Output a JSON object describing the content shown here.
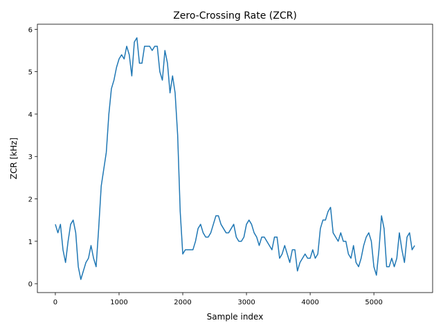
{
  "chart_data": {
    "type": "line",
    "title": "Zero-Crossing Rate (ZCR)",
    "xlabel": "Sample index",
    "ylabel": "ZCR [kHz]",
    "color": "#1f77b4",
    "x": [
      0,
      40,
      80,
      120,
      160,
      200,
      240,
      280,
      320,
      360,
      400,
      440,
      480,
      520,
      560,
      600,
      640,
      680,
      720,
      760,
      800,
      840,
      880,
      920,
      960,
      1000,
      1040,
      1080,
      1120,
      1160,
      1200,
      1240,
      1280,
      1320,
      1360,
      1400,
      1440,
      1480,
      1520,
      1560,
      1600,
      1640,
      1680,
      1720,
      1760,
      1800,
      1840,
      1880,
      1920,
      1960,
      2000,
      2040,
      2080,
      2120,
      2160,
      2200,
      2240,
      2280,
      2320,
      2360,
      2400,
      2440,
      2480,
      2520,
      2560,
      2600,
      2640,
      2680,
      2720,
      2760,
      2800,
      2840,
      2880,
      2920,
      2960,
      3000,
      3040,
      3080,
      3120,
      3160,
      3200,
      3240,
      3280,
      3320,
      3360,
      3400,
      3440,
      3480,
      3520,
      3560,
      3600,
      3640,
      3680,
      3720,
      3760,
      3800,
      3840,
      3880,
      3920,
      3960,
      4000,
      4040,
      4080,
      4120,
      4160,
      4200,
      4240,
      4280,
      4320,
      4360,
      4400,
      4440,
      4480,
      4520,
      4560,
      4600,
      4640,
      4680,
      4720,
      4760,
      4800,
      4840,
      4880,
      4920,
      4960,
      5000,
      5040,
      5080,
      5120,
      5160,
      5200,
      5240,
      5280,
      5320,
      5360,
      5400,
      5440,
      5480,
      5520,
      5560,
      5600,
      5640
    ],
    "values": [
      1.4,
      1.2,
      1.4,
      0.8,
      0.5,
      1.0,
      1.4,
      1.5,
      1.2,
      0.4,
      0.1,
      0.3,
      0.5,
      0.6,
      0.9,
      0.6,
      0.4,
      1.3,
      2.3,
      2.7,
      3.1,
      4.0,
      4.6,
      4.8,
      5.1,
      5.3,
      5.4,
      5.3,
      5.6,
      5.4,
      4.9,
      5.7,
      5.8,
      5.2,
      5.2,
      5.6,
      5.6,
      5.6,
      5.5,
      5.6,
      5.6,
      5.0,
      4.8,
      5.5,
      5.2,
      4.5,
      4.9,
      4.5,
      3.5,
      1.7,
      0.7,
      0.8,
      0.8,
      0.8,
      0.8,
      1.0,
      1.3,
      1.4,
      1.2,
      1.1,
      1.1,
      1.2,
      1.4,
      1.6,
      1.6,
      1.4,
      1.3,
      1.2,
      1.2,
      1.3,
      1.4,
      1.1,
      1.0,
      1.0,
      1.1,
      1.4,
      1.5,
      1.4,
      1.2,
      1.1,
      0.9,
      1.1,
      1.1,
      1.0,
      0.9,
      0.8,
      1.1,
      1.1,
      0.6,
      0.7,
      0.9,
      0.7,
      0.5,
      0.8,
      0.8,
      0.3,
      0.5,
      0.6,
      0.7,
      0.6,
      0.6,
      0.8,
      0.6,
      0.7,
      1.3,
      1.5,
      1.5,
      1.7,
      1.8,
      1.2,
      1.1,
      1.0,
      1.2,
      1.0,
      1.0,
      0.7,
      0.6,
      0.9,
      0.5,
      0.4,
      0.6,
      0.9,
      1.1,
      1.2,
      1.0,
      0.4,
      0.2,
      0.8,
      1.6,
      1.3,
      0.4,
      0.4,
      0.6,
      0.4,
      0.6,
      1.2,
      0.8,
      0.5,
      1.1,
      1.2,
      0.8,
      0.9
    ],
    "xlim": [
      -282,
      5922
    ],
    "ylim": [
      -0.21,
      6.12
    ],
    "xticks": [
      0,
      1000,
      2000,
      3000,
      4000,
      5000
    ],
    "yticks": [
      0,
      1,
      2,
      3,
      4,
      5,
      6
    ]
  }
}
